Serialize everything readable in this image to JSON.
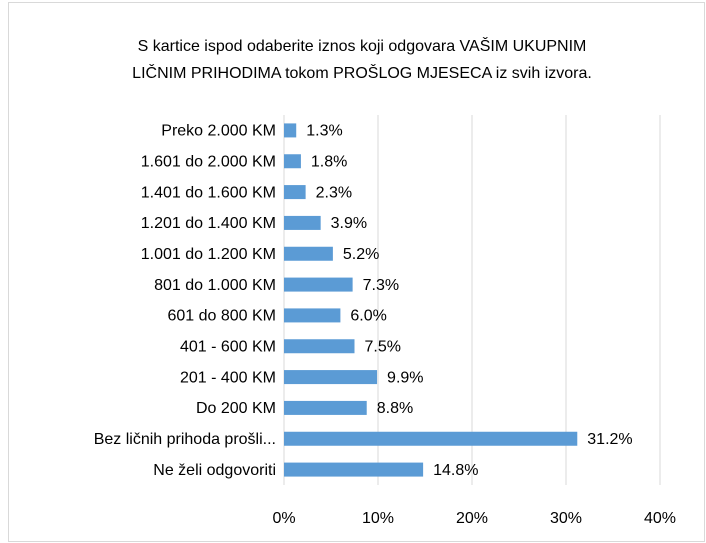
{
  "chart_data": {
    "type": "bar",
    "orientation": "horizontal",
    "title": [
      "S kartice ispod odaberite iznos koji odgovara VAŠIM UKUPNIM",
      "LIČNIM PRIHODIMA tokom PROŠLOG MJESECA iz svih izvora."
    ],
    "categories": [
      "Preko 2.000 KM",
      "1.601 do 2.000 KM",
      "1.401 do 1.600 KM",
      "1.201 do 1.400 KM",
      "1.001 do 1.200 KM",
      "801 do 1.000 KM",
      "601 do 800 KM",
      "401 - 600 KM",
      "201 - 400 KM",
      "Do 200 KM",
      "Bez ličnih prihoda prošli...",
      "Ne želi odgovoriti"
    ],
    "values": [
      1.3,
      1.8,
      2.3,
      3.9,
      5.2,
      7.3,
      6.0,
      7.5,
      9.9,
      8.8,
      31.2,
      14.8
    ],
    "value_labels": [
      "1.3%",
      "1.8%",
      "2.3%",
      "3.9%",
      "5.2%",
      "7.3%",
      "6.0%",
      "7.5%",
      "9.9%",
      "8.8%",
      "31.2%",
      "14.8%"
    ],
    "color": "#5b9bd5",
    "xlim": [
      0,
      40
    ],
    "xticks": [
      {
        "value": 0,
        "label": "0%"
      },
      {
        "value": 10,
        "label": "10%"
      },
      {
        "value": 20,
        "label": "20%"
      },
      {
        "value": 30,
        "label": "30%"
      },
      {
        "value": 40,
        "label": "40%"
      }
    ],
    "grid": true
  }
}
